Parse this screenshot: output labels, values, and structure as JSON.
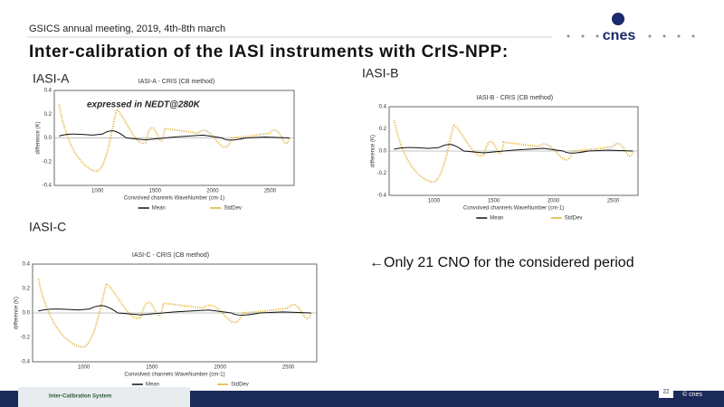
{
  "header": {
    "meeting": "GSICS annual meeting, 2019, 4th-8th march",
    "logo": "cnes"
  },
  "title": "Inter-calibration of the IASI instruments with CrIS-NPP:",
  "panels": [
    {
      "label": "IASI-A",
      "plot_title": "IASI-A - CRIS (CB method)",
      "ylabel": "difference (K)",
      "xlabel": "Convolved channels WaveNumber (cm-1)",
      "xticks": [
        "1000",
        "1500",
        "2000",
        "2500"
      ],
      "yticks": [
        "0.4",
        "0.2",
        "0.0",
        "-0.2",
        "-0.4"
      ],
      "legend": [
        "Mean",
        "StdDev"
      ]
    },
    {
      "label": "IASI-B",
      "plot_title": "IASI-B - CRIS (CB method)",
      "ylabel": "difference (K)",
      "xlabel": "Convolved channels WaveNumber (cm-1)",
      "xticks": [
        "1000",
        "1500",
        "2000",
        "2500"
      ],
      "yticks": [
        "0.4",
        "0.2",
        "0.0",
        "-0.2",
        "-0.4"
      ],
      "legend": [
        "Mean",
        "StdDev"
      ]
    },
    {
      "label": "IASI-C",
      "plot_title": "IASI-C - CRIS (CB method)",
      "ylabel": "difference (K)",
      "xlabel": "Convolved channels WaveNumber (cm-1)",
      "xticks": [
        "1000",
        "1500",
        "2000",
        "2500"
      ],
      "yticks": [
        "0.4",
        "0.2",
        "0.0",
        "-0.2",
        "-0.4"
      ],
      "legend": [
        "Mean",
        "StdDev"
      ]
    }
  ],
  "note": "expressed in NEDT@280K",
  "remark": "←Only 21 CNO for the considered period",
  "footer": {
    "system": "Inter-Calibration System",
    "page": "22",
    "copyright": "© cnes"
  }
}
